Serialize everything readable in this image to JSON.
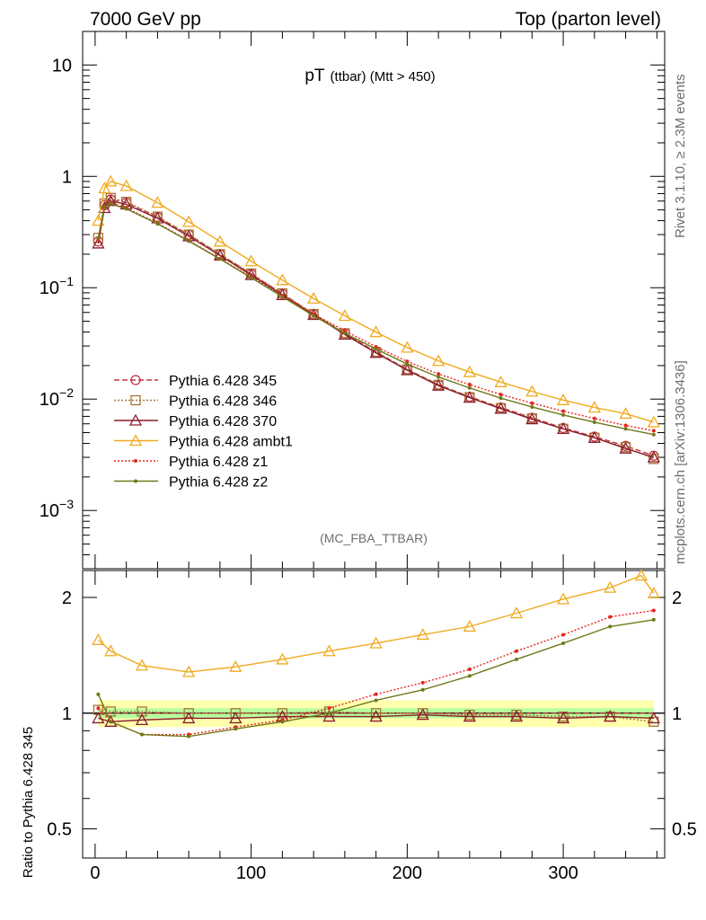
{
  "header": {
    "left": "7000 GeV pp",
    "right": "Top (parton level)"
  },
  "side": {
    "rivet": "Rivet 3.1.10, ≥ 2.3M events",
    "mcplots": "mcplots.cern.ch [arXiv:1306.3436]"
  },
  "chart_data": [
    {
      "type": "line",
      "title": "pT",
      "title_small": "(ttbar) (Mtt > 450)",
      "tag": "(MC_FBA_TTBAR)",
      "yscale": "log",
      "ylim": [
        0.0003,
        20
      ],
      "xlim": [
        -8,
        365
      ],
      "y_ticks": [
        {
          "v": 10,
          "m": "10",
          "e": ""
        },
        {
          "v": 1,
          "m": "1",
          "e": ""
        },
        {
          "v": 0.1,
          "m": "10",
          "e": "−1"
        },
        {
          "v": 0.01,
          "m": "10",
          "e": "−2"
        },
        {
          "v": 0.001,
          "m": "10",
          "e": "−3"
        }
      ],
      "legend_position": "left, middle",
      "series": [
        {
          "name": "Pythia 6.428 345",
          "color": "#c3333f",
          "marker": "open-circle",
          "dash": "6,3",
          "x": [
            2,
            6,
            10,
            20,
            40,
            60,
            80,
            100,
            120,
            140,
            160,
            180,
            200,
            220,
            240,
            260,
            280,
            300,
            320,
            340,
            358
          ],
          "y": [
            0.26,
            0.55,
            0.62,
            0.58,
            0.43,
            0.3,
            0.2,
            0.133,
            0.088,
            0.058,
            0.039,
            0.0265,
            0.0185,
            0.0135,
            0.0105,
            0.0084,
            0.0068,
            0.0055,
            0.0046,
            0.0038,
            0.0031
          ]
        },
        {
          "name": "Pythia 6.428 346",
          "color": "#a87534",
          "marker": "open-square",
          "dash": "2,2",
          "x": [
            2,
            6,
            10,
            20,
            40,
            60,
            80,
            100,
            120,
            140,
            160,
            180,
            200,
            220,
            240,
            260,
            280,
            300,
            320,
            340,
            358
          ],
          "y": [
            0.28,
            0.57,
            0.64,
            0.59,
            0.435,
            0.3,
            0.2,
            0.134,
            0.089,
            0.058,
            0.039,
            0.0265,
            0.0185,
            0.0134,
            0.0104,
            0.0083,
            0.0067,
            0.0054,
            0.0045,
            0.0037,
            0.0029
          ]
        },
        {
          "name": "Pythia 6.428 370",
          "color": "#8a1d2e",
          "marker": "open-triangle",
          "dash": "",
          "x": [
            2,
            6,
            10,
            20,
            40,
            60,
            80,
            100,
            120,
            140,
            160,
            180,
            200,
            220,
            240,
            260,
            280,
            300,
            320,
            340,
            358
          ],
          "y": [
            0.25,
            0.52,
            0.6,
            0.56,
            0.42,
            0.29,
            0.195,
            0.13,
            0.086,
            0.057,
            0.038,
            0.026,
            0.0182,
            0.0132,
            0.0103,
            0.0082,
            0.0066,
            0.0054,
            0.0045,
            0.0036,
            0.003
          ]
        },
        {
          "name": "Pythia 6.428 ambt1",
          "color": "#f0aa1e",
          "marker": "open-triangle",
          "dash": "",
          "x": [
            2,
            6,
            10,
            20,
            40,
            60,
            80,
            100,
            120,
            140,
            160,
            180,
            200,
            220,
            240,
            260,
            280,
            300,
            320,
            340,
            358
          ],
          "y": [
            0.4,
            0.78,
            0.9,
            0.82,
            0.58,
            0.39,
            0.26,
            0.173,
            0.117,
            0.08,
            0.056,
            0.04,
            0.029,
            0.022,
            0.0175,
            0.0142,
            0.0117,
            0.0098,
            0.0084,
            0.0074,
            0.0062
          ]
        },
        {
          "name": "Pythia 6.428 z1",
          "color": "#e8231e",
          "marker": "dot",
          "dash": "2,2",
          "x": [
            2,
            6,
            10,
            20,
            40,
            60,
            80,
            100,
            120,
            140,
            160,
            180,
            200,
            220,
            240,
            260,
            280,
            300,
            320,
            340,
            358
          ],
          "y": [
            0.27,
            0.53,
            0.58,
            0.52,
            0.38,
            0.265,
            0.183,
            0.125,
            0.085,
            0.058,
            0.041,
            0.0295,
            0.0218,
            0.0168,
            0.0135,
            0.011,
            0.0092,
            0.0078,
            0.0067,
            0.0058,
            0.0052
          ]
        },
        {
          "name": "Pythia 6.428 z2",
          "color": "#6f7a1a",
          "marker": "dot",
          "dash": "",
          "x": [
            2,
            6,
            10,
            20,
            40,
            60,
            80,
            100,
            120,
            140,
            160,
            180,
            200,
            220,
            240,
            260,
            280,
            300,
            320,
            340,
            358
          ],
          "y": [
            0.28,
            0.53,
            0.57,
            0.51,
            0.375,
            0.262,
            0.181,
            0.123,
            0.083,
            0.056,
            0.039,
            0.0282,
            0.0206,
            0.0158,
            0.0126,
            0.0102,
            0.0085,
            0.0072,
            0.0062,
            0.0054,
            0.0048
          ]
        }
      ]
    },
    {
      "type": "line",
      "ylabel": "Ratio to Pythia 6.428 345",
      "yscale": "log",
      "ylim": [
        0.42,
        2.35
      ],
      "xlim": [
        -8,
        365
      ],
      "x_ticks": [
        0,
        100,
        200,
        300
      ],
      "y_ticks": [
        "2",
        "1",
        "0.5"
      ],
      "y_tick_values": [
        2,
        1,
        0.5
      ],
      "band": {
        "x": [
          2,
          358
        ],
        "yellow": 0.08,
        "green": 0.03
      },
      "series": [
        {
          "name": "Pythia 6.428 345",
          "color": "#c3333f",
          "marker": "none",
          "dash": "6,3",
          "x": [
            2,
            358
          ],
          "y": [
            1,
            1
          ]
        },
        {
          "name": "Pythia 6.428 346",
          "color": "#a87534",
          "marker": "open-square",
          "dash": "2,2",
          "x": [
            2,
            10,
            30,
            60,
            90,
            120,
            150,
            180,
            210,
            240,
            270,
            300,
            330,
            358
          ],
          "y": [
            1.02,
            1.01,
            1.01,
            1.0,
            1.0,
            1.0,
            1.01,
            1.0,
            1.0,
            0.99,
            0.99,
            0.98,
            0.98,
            0.95
          ]
        },
        {
          "name": "Pythia 6.428 370",
          "color": "#8a1d2e",
          "marker": "open-triangle",
          "dash": "",
          "x": [
            2,
            10,
            30,
            60,
            90,
            120,
            150,
            180,
            210,
            240,
            270,
            300,
            330,
            358
          ],
          "y": [
            0.97,
            0.95,
            0.96,
            0.97,
            0.97,
            0.98,
            0.98,
            0.98,
            0.99,
            0.98,
            0.98,
            0.97,
            0.98,
            0.97
          ]
        },
        {
          "name": "Pythia 6.428 ambt1",
          "color": "#f0aa1e",
          "marker": "open-triangle",
          "dash": "",
          "x": [
            2,
            10,
            30,
            60,
            90,
            120,
            150,
            180,
            210,
            240,
            270,
            300,
            330,
            350,
            358
          ],
          "y": [
            1.55,
            1.45,
            1.33,
            1.28,
            1.32,
            1.38,
            1.45,
            1.52,
            1.6,
            1.68,
            1.82,
            1.98,
            2.12,
            2.28,
            2.05
          ]
        },
        {
          "name": "Pythia 6.428 z1",
          "color": "#e8231e",
          "marker": "dot",
          "dash": "2,2",
          "x": [
            2,
            10,
            30,
            60,
            90,
            120,
            150,
            180,
            210,
            240,
            270,
            300,
            330,
            358
          ],
          "y": [
            1.03,
            0.95,
            0.88,
            0.88,
            0.92,
            0.96,
            1.03,
            1.12,
            1.2,
            1.3,
            1.45,
            1.6,
            1.78,
            1.85
          ]
        },
        {
          "name": "Pythia 6.428 z2",
          "color": "#6f7a1a",
          "marker": "dot",
          "dash": "",
          "x": [
            2,
            10,
            30,
            60,
            90,
            120,
            150,
            180,
            210,
            240,
            270,
            300,
            330,
            358
          ],
          "y": [
            1.12,
            0.95,
            0.88,
            0.87,
            0.91,
            0.95,
            1.0,
            1.08,
            1.15,
            1.25,
            1.38,
            1.52,
            1.68,
            1.75
          ]
        }
      ]
    }
  ]
}
